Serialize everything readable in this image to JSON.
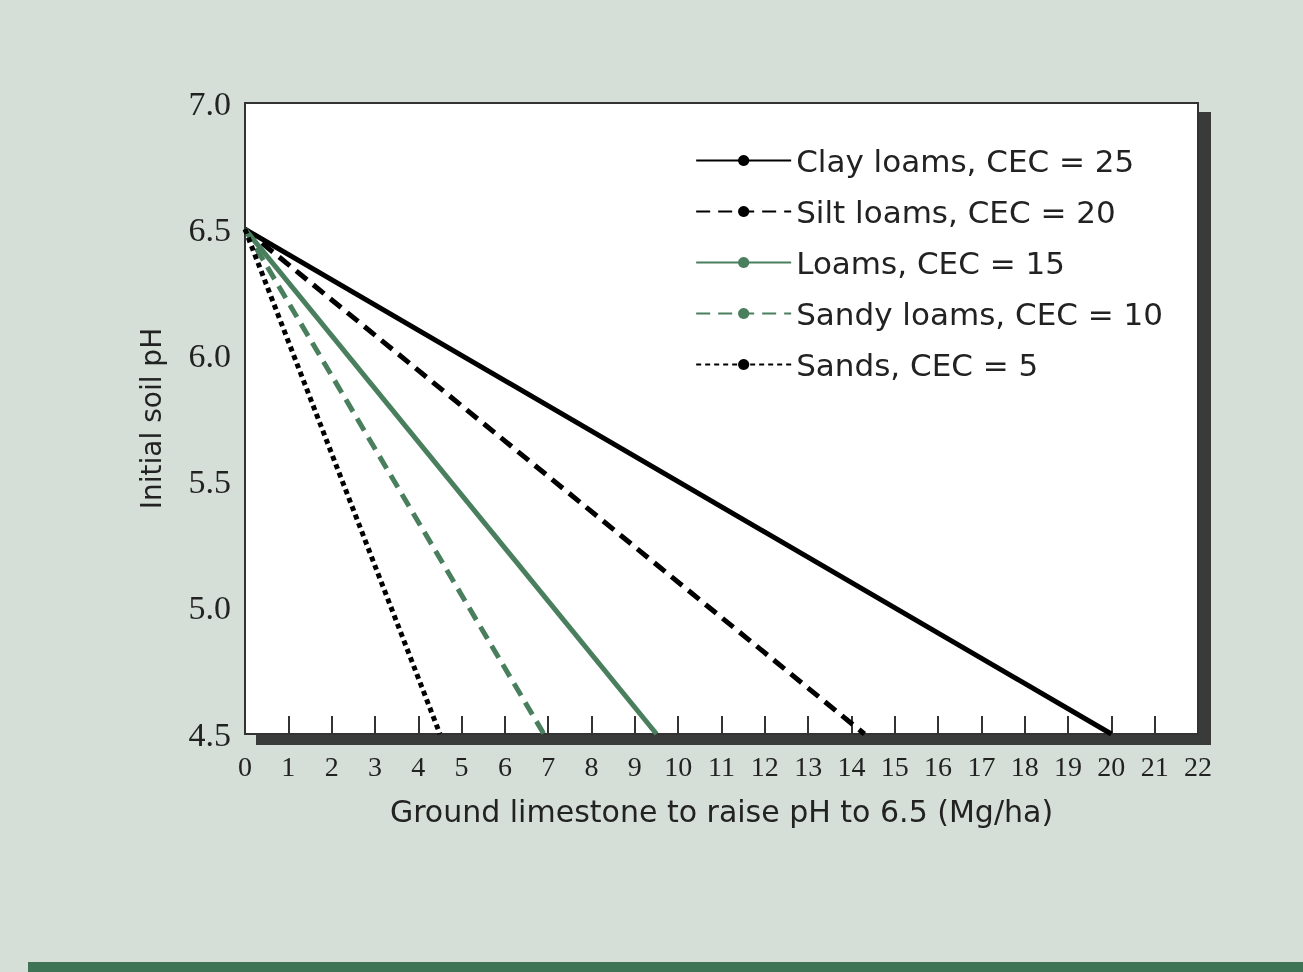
{
  "chart_data": {
    "type": "line",
    "xlabel": "Ground limestone to raise pH to 6.5 (Mg/ha)",
    "ylabel": "Initial soil pH",
    "series": [
      {
        "name": "Clay loams, CEC = 25",
        "color": "#000000",
        "line_style": "solid",
        "x": [
          0,
          20
        ],
        "values": [
          6.5,
          4.5
        ]
      },
      {
        "name": "Silt loams, CEC = 20",
        "color": "#000000",
        "line_style": "dashed",
        "x": [
          0,
          14.3
        ],
        "values": [
          6.5,
          4.5
        ]
      },
      {
        "name": "Loams, CEC = 15",
        "color": "#4a7f5e",
        "line_style": "solid",
        "x": [
          0,
          9.5
        ],
        "values": [
          6.5,
          4.5
        ]
      },
      {
        "name": "Sandy loams, CEC = 10",
        "color": "#4a7f5e",
        "line_style": "dashed",
        "x": [
          0,
          6.9
        ],
        "values": [
          6.5,
          4.5
        ]
      },
      {
        "name": "Sands, CEC = 5",
        "color": "#000000",
        "line_style": "dotted",
        "x": [
          0,
          4.5
        ],
        "values": [
          6.5,
          4.5
        ]
      }
    ],
    "xlim": [
      0,
      22
    ],
    "xticks": [
      0,
      1,
      2,
      3,
      4,
      5,
      6,
      7,
      8,
      9,
      10,
      11,
      12,
      13,
      14,
      15,
      16,
      17,
      18,
      19,
      20,
      21,
      22
    ],
    "ylim": [
      4.5,
      7.0
    ],
    "yticks": [
      {
        "value": 4.5,
        "label": "4.5"
      },
      {
        "value": 5,
        "label": "5.0"
      },
      {
        "value": 5.5,
        "label": "5.5"
      },
      {
        "value": 6,
        "label": "6.0"
      },
      {
        "value": 6.5,
        "label": "6.5"
      },
      {
        "value": 7,
        "label": "7.0"
      }
    ],
    "grid": false,
    "legend": "top right",
    "marker": "none"
  }
}
